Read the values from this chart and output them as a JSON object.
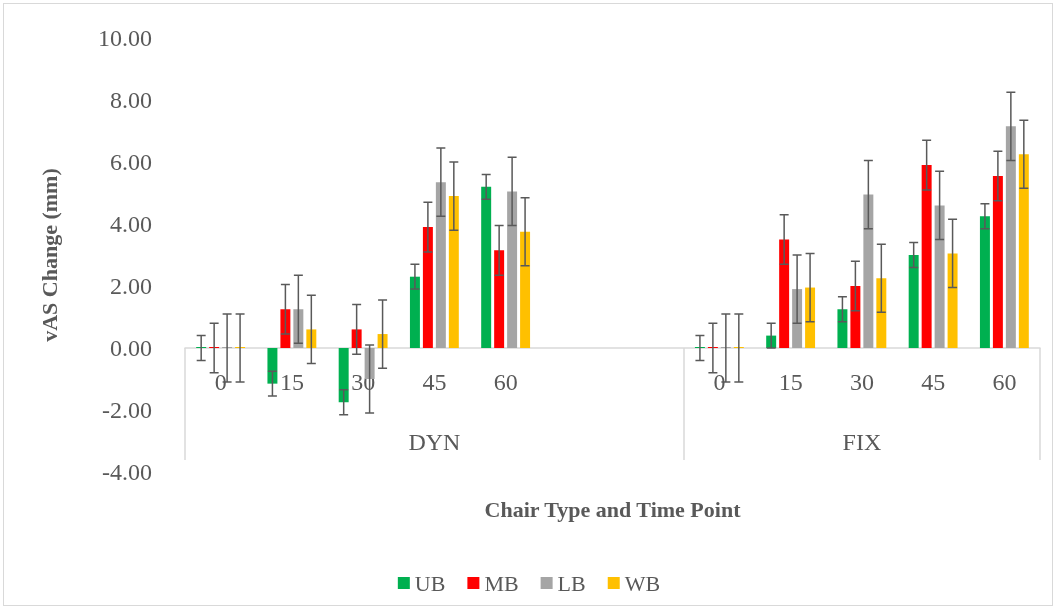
{
  "chart_data": {
    "type": "bar",
    "xlabel": "Chair Type and Time Point",
    "ylabel": "vAS Change (mm)",
    "categories": [
      "0",
      "15",
      "30",
      "45",
      "60",
      null,
      null,
      "0",
      "15",
      "30",
      "45",
      "60"
    ],
    "series": [
      {
        "name": "UB",
        "color": "#00b050",
        "values": [
          0,
          -1.15,
          -1.75,
          2.3,
          5.2,
          null,
          null,
          0,
          0.4,
          1.25,
          3.0,
          4.25
        ],
        "errors": [
          0.4,
          0.4,
          0.4,
          0.4,
          0.4,
          null,
          null,
          0.4,
          0.4,
          0.4,
          0.4,
          0.4
        ]
      },
      {
        "name": "MB",
        "color": "#ff0000",
        "values": [
          0,
          1.25,
          0.6,
          3.9,
          3.15,
          null,
          null,
          0,
          3.5,
          2.0,
          5.9,
          5.55
        ],
        "errors": [
          0.8,
          0.8,
          0.8,
          0.8,
          0.8,
          null,
          null,
          0.8,
          0.8,
          0.8,
          0.8,
          0.8
        ]
      },
      {
        "name": "LB",
        "color": "#a5a5a5",
        "values": [
          0,
          1.25,
          -1.0,
          5.35,
          5.05,
          null,
          null,
          0,
          1.9,
          4.95,
          4.6,
          7.15
        ],
        "errors": [
          1.1,
          1.1,
          1.1,
          1.1,
          1.1,
          null,
          null,
          1.1,
          1.1,
          1.1,
          1.1,
          1.1
        ]
      },
      {
        "name": "WB",
        "color": "#ffc000",
        "values": [
          0,
          0.6,
          0.45,
          4.9,
          3.75,
          null,
          null,
          0,
          1.95,
          2.25,
          3.05,
          6.25
        ],
        "errors": [
          1.1,
          1.1,
          1.1,
          1.1,
          1.1,
          null,
          null,
          1.1,
          1.1,
          1.1,
          1.1,
          1.1
        ]
      }
    ],
    "annotations": [
      "DYN",
      "FIX"
    ],
    "ylim": [
      -4,
      10
    ],
    "yticks": [
      {
        "value": -4,
        "label": "-4.00"
      },
      {
        "value": -2,
        "label": "-2.00"
      },
      {
        "value": 0,
        "label": "0.00"
      },
      {
        "value": 2,
        "label": "2.00"
      },
      {
        "value": 4,
        "label": "4.00"
      },
      {
        "value": 6,
        "label": "6.00"
      },
      {
        "value": 8,
        "label": "8.00"
      },
      {
        "value": 10,
        "label": "10.00"
      }
    ],
    "grid": false,
    "legend": "bottom"
  }
}
